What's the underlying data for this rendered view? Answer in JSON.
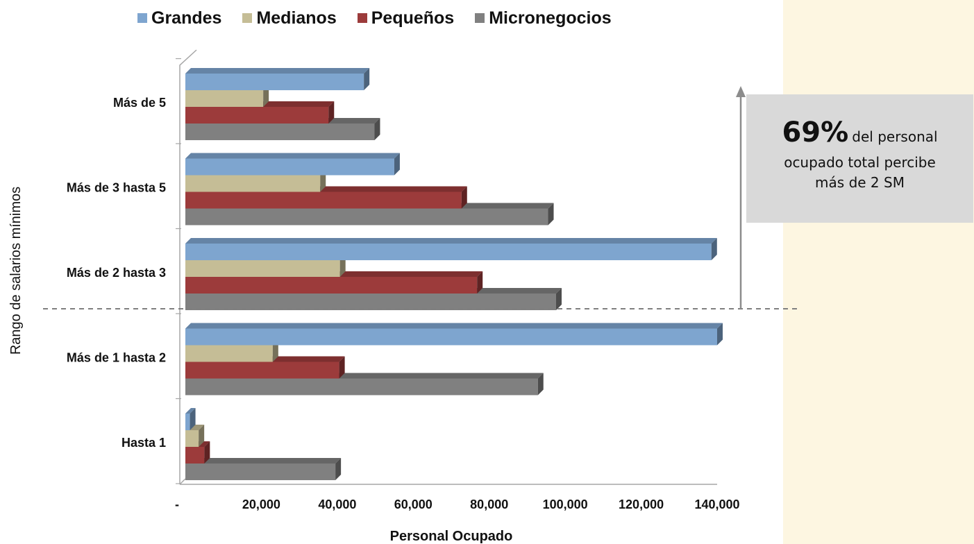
{
  "chart_data": {
    "type": "bar",
    "orientation": "horizontal",
    "style": "3d",
    "categories": [
      "Hasta 1",
      "Más de 1 hasta 2",
      "Más de 2 hasta 3",
      "Más de 3 hasta 5",
      "Más de 5"
    ],
    "series": [
      {
        "name": "Grandes",
        "color": "#7ea5cf",
        "values": [
          1200,
          140000,
          138500,
          55000,
          47000
        ]
      },
      {
        "name": "Medianos",
        "color": "#c5bd96",
        "values": [
          3500,
          23000,
          40700,
          35500,
          20500
        ]
      },
      {
        "name": "Pequeños",
        "color": "#9c3b3b",
        "values": [
          5000,
          40500,
          76800,
          72700,
          37700
        ]
      },
      {
        "name": "Micronegocios",
        "color": "#808080",
        "values": [
          39500,
          92800,
          97600,
          95500,
          49800
        ]
      }
    ],
    "xlabel": "Personal Ocupado",
    "ylabel": "Rango de salarios mínimos",
    "xlim": [
      0,
      140000
    ],
    "xticks": [
      "-",
      "20,000",
      "40,000",
      "60,000",
      "80,000",
      "100,000",
      "120,000",
      "140,000"
    ],
    "grid": false,
    "legend_position": "top"
  },
  "callout": {
    "percent": "69%",
    "text_line1": "del personal",
    "text_line2": "ocupado total percibe",
    "text_line3": "más de 2 SM"
  }
}
